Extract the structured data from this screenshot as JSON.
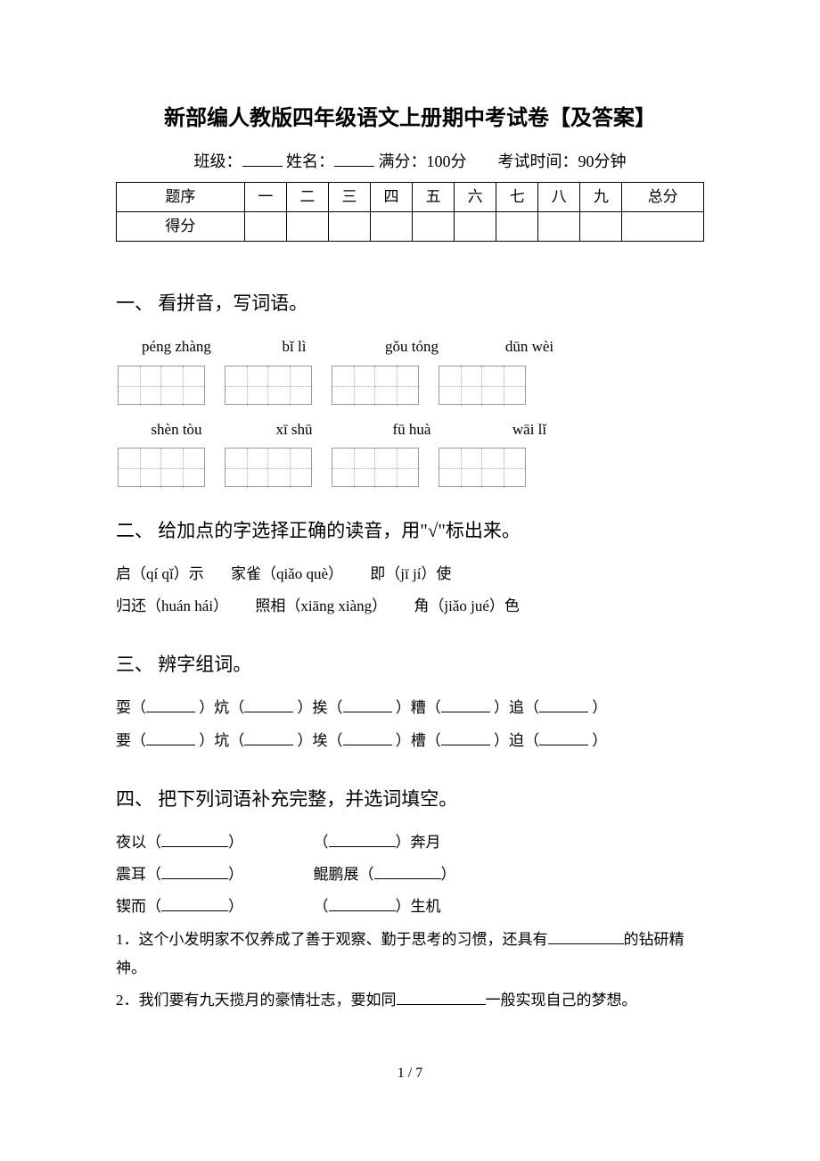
{
  "title": "新部编人教版四年级语文上册期中考试卷【及答案】",
  "meta": {
    "class_label": "班级：",
    "name_label": "姓名：",
    "full_label": "满分：100分",
    "time_label": "考试时间：90分钟"
  },
  "score_table": {
    "headers": [
      "题序",
      "一",
      "二",
      "三",
      "四",
      "五",
      "六",
      "七",
      "八",
      "九",
      "总分"
    ],
    "score_label": "得分"
  },
  "section1": {
    "heading": "一、 看拼音，写词语。",
    "row1": [
      "péng zhàng",
      "bǐ  lì",
      "gǒu tóng",
      "dūn wèi"
    ],
    "row2": [
      "shèn tòu",
      "xī  shū",
      "fū  huà",
      "wāi  lǐ"
    ]
  },
  "section2": {
    "heading": "二、 给加点的字选择正确的读音，用\"√\"标出来。",
    "line1_a": "启（qí qǐ）示",
    "line1_b": "家雀（qiǎo què）",
    "line1_c": "即（jī  jí）使",
    "line2_a": "归还（huán hái）",
    "line2_b": "照相（xiāng xiàng）",
    "line2_c": "角（jiǎo jué）色"
  },
  "section3": {
    "heading": "三、 辨字组词。",
    "row1": [
      "耍（",
      "）炕（",
      "）挨（",
      "）糟（",
      "）追（",
      "）"
    ],
    "row2": [
      "要（",
      "）坑（",
      "）埃（",
      "）槽（",
      "）迫（",
      "）"
    ]
  },
  "section4": {
    "heading": "四、 把下列词语补充完整，并选词填空。",
    "pair1_a": "夜以（",
    "pair1_b": "）",
    "pair1_c": "（",
    "pair1_d": "）奔月",
    "pair2_a": "震耳（",
    "pair2_b": "）",
    "pair2_c": "鲲鹏展（",
    "pair2_d": "）",
    "pair3_a": "锲而（",
    "pair3_b": "）",
    "pair3_c": "（",
    "pair3_d": "）生机",
    "q1_a": "1．这个小发明家不仅养成了善于观察、勤于思考的习惯，还具有",
    "q1_b": "的钻研精神。",
    "q2_a": "2．我们要有九天揽月的豪情壮志，要如同",
    "q2_b": "一般实现自己的梦想。"
  },
  "footer": "1 / 7"
}
